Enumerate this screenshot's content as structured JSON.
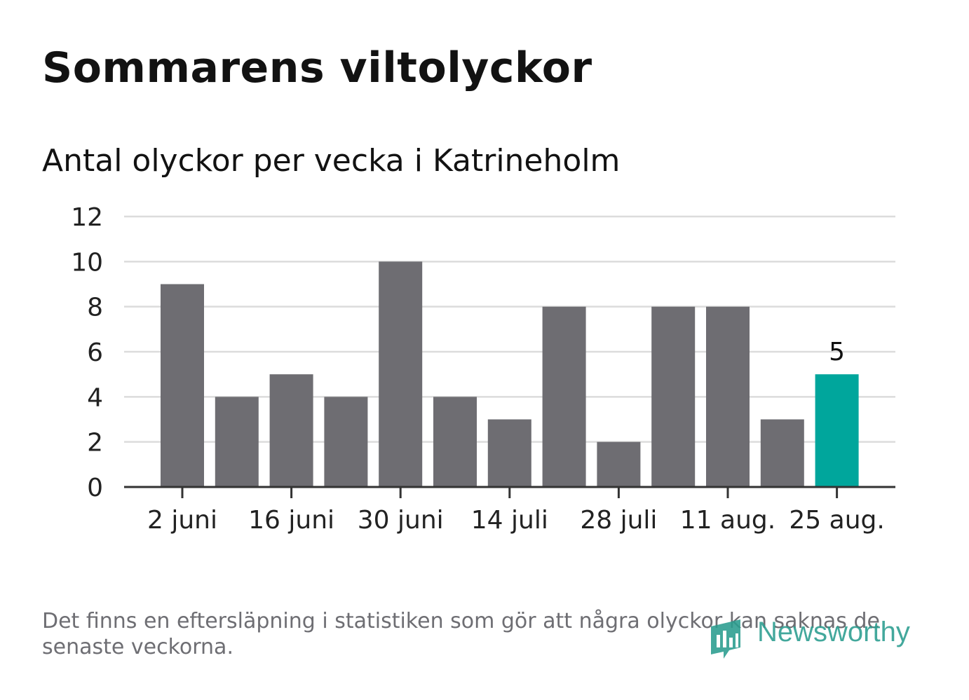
{
  "title": "Sommarens viltolyckor",
  "subtitle": "Antal olyckor per vecka i Katrineholm",
  "footnote": "Det finns en eftersläpning i statistiken som gör att några olyckor kan saknas de senaste veckorna.",
  "logo_text": "Newsworthy",
  "colors": {
    "bar": "#6e6d72",
    "highlight": "#00a69c",
    "grid": "#dcdcdc",
    "axis": "#333333",
    "logo": "#2a9d8f"
  },
  "chart_data": {
    "type": "bar",
    "title": "Sommarens viltolyckor",
    "subtitle": "Antal olyckor per vecka i Katrineholm",
    "values": [
      9,
      4,
      5,
      4,
      10,
      4,
      3,
      8,
      2,
      8,
      8,
      3,
      5
    ],
    "x_tick_labels": [
      "2 juni",
      "16 juni",
      "30 juni",
      "14 juli",
      "28 juli",
      "11 aug.",
      "25 aug."
    ],
    "x_tick_every": 2,
    "y_ticks": [
      0,
      2,
      4,
      6,
      8,
      10,
      12
    ],
    "ylim": [
      0,
      12
    ],
    "grid": true,
    "highlight_index": 12,
    "highlight_label": "5"
  }
}
